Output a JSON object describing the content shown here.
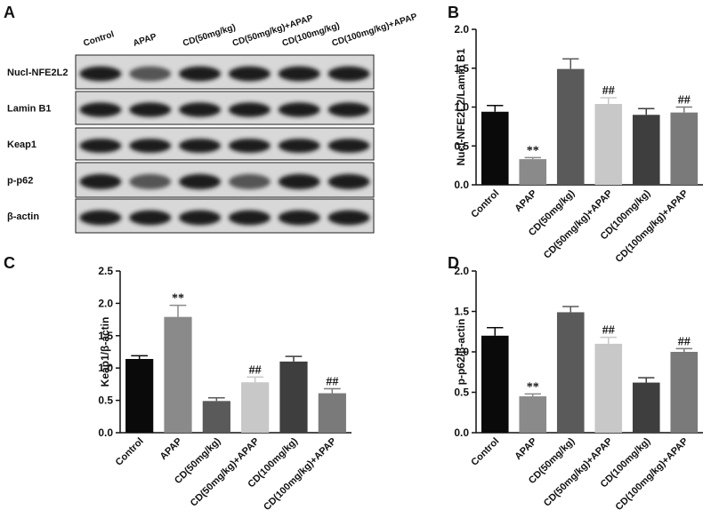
{
  "blot": {
    "panel": "A",
    "columns": [
      "Control",
      "APAP",
      "CD(50mg/kg)",
      "CD(50mg/kg)+APAP",
      "CD(100mg/kg)",
      "CD(100mg/kg)+APAP"
    ],
    "rows": [
      "Nucl-NFE2L2",
      "Lamin B1",
      "Keap1",
      "p-p62",
      "β-actin"
    ]
  },
  "chart_data": [
    {
      "type": "bar",
      "panel": "B",
      "ylabel": "Nucl-NFE2L2/Lamin B1",
      "categories": [
        "Control",
        "APAP",
        "CD(50mg/kg)",
        "CD(50mg/kg)+APAP",
        "CD(100mg/kg)",
        "CD(100mg/kg)+APAP"
      ],
      "values": [
        0.94,
        0.33,
        1.49,
        1.04,
        0.9,
        0.93
      ],
      "errors": [
        0.08,
        0.02,
        0.13,
        0.08,
        0.08,
        0.07
      ],
      "colors": [
        "#0a0a0a",
        "#8a8a8a",
        "#5a5a5a",
        "#c8c8c8",
        "#3e3e3e",
        "#7a7a7a"
      ],
      "ylim": [
        0,
        2.0
      ],
      "yticks": [
        {
          "value": 0,
          "label": "0.0"
        },
        0.5,
        {
          "value": 1,
          "label": "1.0"
        },
        1.5,
        {
          "value": 2,
          "label": "2.0"
        }
      ],
      "annotations": [
        {
          "index": 1,
          "text": "**"
        },
        {
          "index": 3,
          "text": "##"
        },
        {
          "index": 5,
          "text": "##"
        }
      ]
    },
    {
      "type": "bar",
      "panel": "C",
      "ylabel": "Keap1/β-actin",
      "categories": [
        "Control",
        "APAP",
        "CD(50mg/kg)",
        "CD(50mg/kg)+APAP",
        "CD(100mg/kg)",
        "CD(100mg/kg)+APAP"
      ],
      "values": [
        1.14,
        1.79,
        0.49,
        0.78,
        1.1,
        0.61
      ],
      "errors": [
        0.05,
        0.18,
        0.05,
        0.08,
        0.08,
        0.07
      ],
      "colors": [
        "#0a0a0a",
        "#8a8a8a",
        "#5a5a5a",
        "#c8c8c8",
        "#3e3e3e",
        "#7a7a7a"
      ],
      "ylim": [
        0,
        2.5
      ],
      "yticks": [
        {
          "value": 0,
          "label": "0.0"
        },
        0.5,
        {
          "value": 1,
          "label": "1.0"
        },
        1.5,
        {
          "value": 2,
          "label": "2.0"
        },
        2.5
      ],
      "annotations": [
        {
          "index": 1,
          "text": "**"
        },
        {
          "index": 3,
          "text": "##"
        },
        {
          "index": 5,
          "text": "##"
        }
      ]
    },
    {
      "type": "bar",
      "panel": "D",
      "ylabel": "p-p62/β-actin",
      "categories": [
        "Control",
        "APAP",
        "CD(50mg/kg)",
        "CD(50mg/kg)+APAP",
        "CD(100mg/kg)",
        "CD(100mg/kg)+APAP"
      ],
      "values": [
        1.2,
        0.45,
        1.49,
        1.1,
        0.62,
        1.0
      ],
      "errors": [
        0.1,
        0.03,
        0.07,
        0.08,
        0.06,
        0.04
      ],
      "colors": [
        "#0a0a0a",
        "#8a8a8a",
        "#5a5a5a",
        "#c8c8c8",
        "#3e3e3e",
        "#7a7a7a"
      ],
      "ylim": [
        0,
        2.0
      ],
      "yticks": [
        {
          "value": 0,
          "label": "0.0"
        },
        0.5,
        {
          "value": 1,
          "label": "1.0"
        },
        1.5,
        {
          "value": 2,
          "label": "2.0"
        }
      ],
      "annotations": [
        {
          "index": 1,
          "text": "**"
        },
        {
          "index": 3,
          "text": "##"
        },
        {
          "index": 5,
          "text": "##"
        }
      ]
    }
  ]
}
